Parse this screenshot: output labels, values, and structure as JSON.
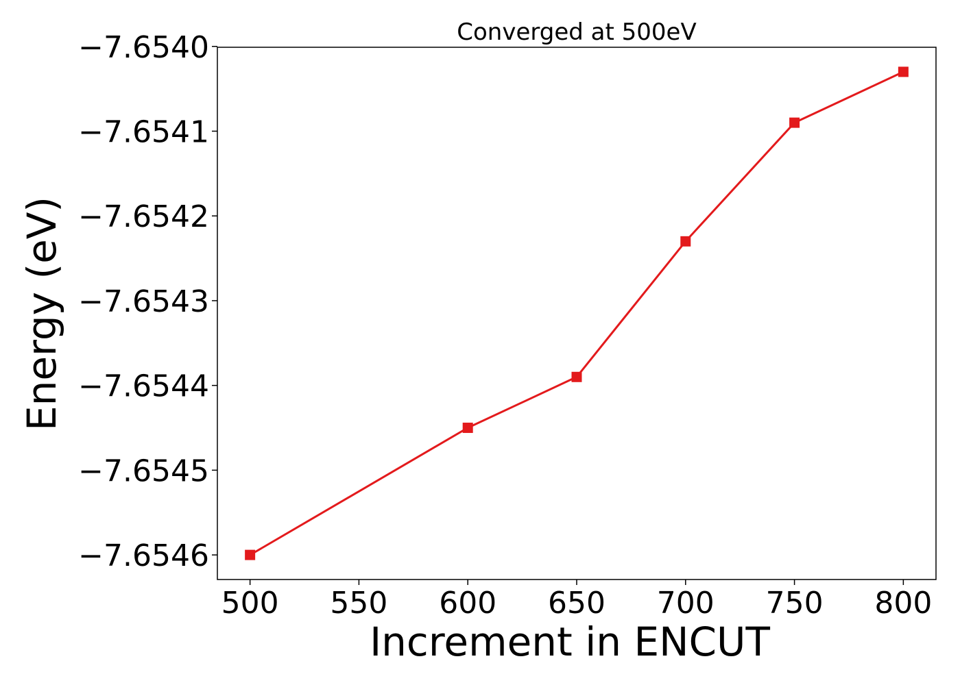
{
  "chart_data": {
    "type": "line",
    "title": "Converged at 500eV",
    "xlabel": "Increment in ENCUT",
    "ylabel": "Energy (eV)",
    "x": [
      500,
      600,
      650,
      700,
      750,
      800
    ],
    "series": [
      {
        "values": [
          -7.6546,
          -7.65445,
          -7.65439,
          -7.65423,
          -7.65409,
          -7.65403
        ],
        "color": "#e31a1c",
        "marker": "square"
      }
    ],
    "xticks": [
      500,
      550,
      600,
      650,
      700,
      750,
      800
    ],
    "xtick_labels": [
      "500",
      "550",
      "600",
      "650",
      "700",
      "750",
      "800"
    ],
    "yticks": [
      -7.6546,
      -7.6545,
      -7.6544,
      -7.6543,
      -7.6542,
      -7.6541,
      -7.654
    ],
    "ytick_labels": [
      "−7.6546",
      "−7.6545",
      "−7.6544",
      "−7.6543",
      "−7.6542",
      "−7.6541",
      "−7.6540"
    ],
    "xlim": [
      485,
      815
    ],
    "ylim": [
      -7.654629,
      -7.654001
    ],
    "grid": false,
    "legend": "none"
  }
}
